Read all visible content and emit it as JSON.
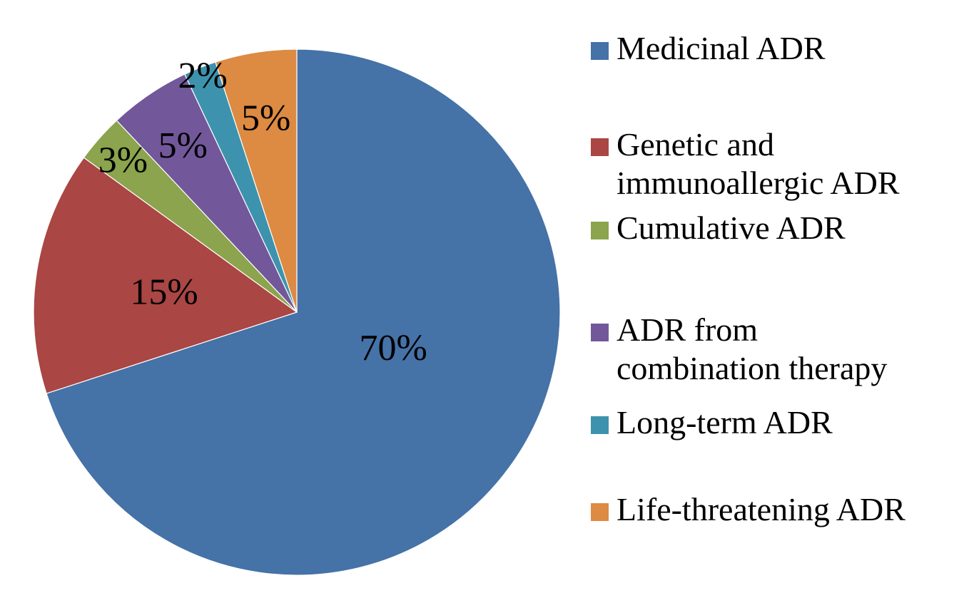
{
  "chart_data": {
    "type": "pie",
    "title": "",
    "unit": "percent",
    "start_angle_deg": 0,
    "direction": "clockwise",
    "legend_position": "right",
    "background_color": "#ffffff",
    "slices": [
      {
        "label": "Medicinal ADR",
        "value": 70,
        "pct_label": "70%",
        "color": "#4572A7",
        "label_r": 0.39,
        "label_angle_deg": 110,
        "label_outside": false
      },
      {
        "label": "Genetic and immunoallergic ADR",
        "value": 15,
        "pct_label": "15%",
        "color": "#AA4643",
        "label_r": 0.51,
        "label_outside": false
      },
      {
        "label": "Cumulative ADR",
        "value": 3,
        "pct_label": "3%",
        "color": "#8BA44D",
        "label_r": 0.88,
        "label_outside": false
      },
      {
        "label": "ADR from combination therapy",
        "value": 5,
        "pct_label": "5%",
        "color": "#72589A",
        "label_r": 0.77,
        "label_outside": false
      },
      {
        "label": "Long-term ADR",
        "value": 2,
        "pct_label": "2%",
        "color": "#3D93AD",
        "label_r": 0.97,
        "label_outside": true
      },
      {
        "label": "Life-threatening ADR",
        "value": 5,
        "pct_label": "5%",
        "color": "#DD8A42",
        "label_r": 0.75,
        "label_outside": false
      }
    ]
  },
  "legend": {
    "items": [
      {
        "label": "Medicinal ADR",
        "color": "#4572A7"
      },
      {
        "label": "Genetic and\nimmunoallergic ADR",
        "color": "#AA4643"
      },
      {
        "label": "Cumulative ADR",
        "color": "#8BA44D"
      },
      {
        "label": "ADR from\ncombination therapy",
        "color": "#72589A"
      },
      {
        "label": "Long-term ADR",
        "color": "#3D93AD"
      },
      {
        "label": "Life-threatening ADR",
        "color": "#DD8A42"
      }
    ]
  }
}
